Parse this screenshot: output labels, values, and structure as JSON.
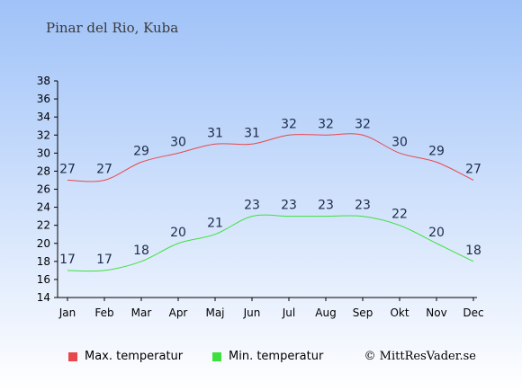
{
  "chart_data": {
    "type": "line",
    "title": "Pinar del Rio, Kuba",
    "categories": [
      "Jan",
      "Feb",
      "Mar",
      "Apr",
      "Maj",
      "Jun",
      "Jul",
      "Aug",
      "Sep",
      "Okt",
      "Nov",
      "Dec"
    ],
    "ylim": [
      14,
      38
    ],
    "yticks": [
      14,
      16,
      18,
      20,
      22,
      24,
      26,
      28,
      30,
      32,
      34,
      36,
      38
    ],
    "grid": false,
    "legend_position": "bottom",
    "series": [
      {
        "name": "Max. temperatur",
        "color": "#e8484b",
        "values": [
          27,
          27,
          29,
          30,
          31,
          31,
          32,
          32,
          32,
          30,
          29,
          27
        ]
      },
      {
        "name": "Min. temperatur",
        "color": "#3ee03e",
        "values": [
          17,
          17,
          18,
          20,
          21,
          23,
          23,
          23,
          23,
          22,
          20,
          18
        ]
      }
    ]
  },
  "credit": "© MittResVader.se"
}
